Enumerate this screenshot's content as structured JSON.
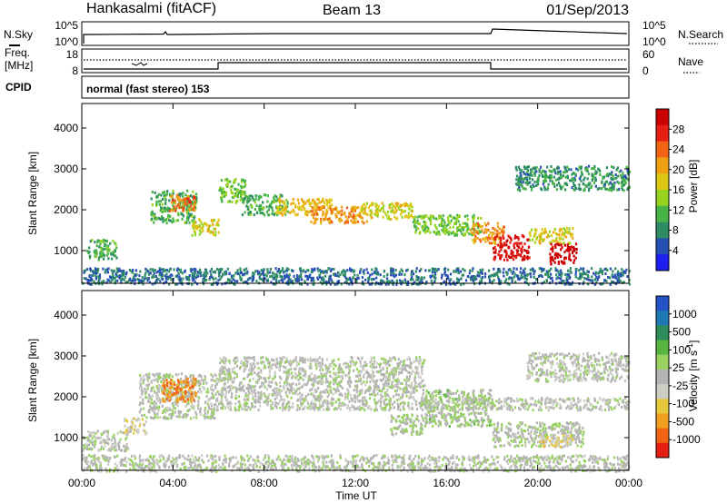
{
  "header": {
    "station": "Hankasalmi (fitACF)",
    "beam": "Beam 13",
    "date": "01/Sep/2013"
  },
  "summary": {
    "nsky_label": "N.Sky",
    "nsearch_label": "N.Search",
    "noise_ticks": [
      "10^5",
      "10^0"
    ],
    "freq_label_line1": "Freq.",
    "freq_label_line2": "[MHz]",
    "freq_ticks": [
      "18",
      "8"
    ],
    "nave_label": "Nave",
    "nave_ticks": [
      "60",
      "0"
    ],
    "cpid_label": "CPID",
    "cpid_text": "normal (fast stereo) 153"
  },
  "x_axis": {
    "label": "Time UT",
    "ticks": [
      "00:00",
      "04:00",
      "08:00",
      "12:00",
      "16:00",
      "20:00",
      "00:00"
    ]
  },
  "colors": {
    "power_scale": [
      "#1e1ef0",
      "#2850b4",
      "#2e8c64",
      "#46b446",
      "#96d21e",
      "#dcc814",
      "#f0a014",
      "#f06414",
      "#e61e14",
      "#cc0000"
    ],
    "velocity_scale": [
      "#2450c8",
      "#1e78b4",
      "#2e8c5a",
      "#58b440",
      "#9ad262",
      "#b4b4b4",
      "#cdcdc6",
      "#e6c83c",
      "#f0a01e",
      "#f06414",
      "#e61e14"
    ]
  },
  "chart_data": [
    {
      "type": "heatmap",
      "panel": "power",
      "ylabel": "Slant Range [km]",
      "xlim_hours": [
        0,
        24
      ],
      "ylim": [
        200,
        4600
      ],
      "y_ticks": [
        1000,
        2000,
        3000,
        4000
      ],
      "colorbar": {
        "label": "Power [dB]",
        "ticks": [
          "28",
          "24",
          "20",
          "16",
          "12",
          "8",
          "4"
        ],
        "range": [
          0,
          30
        ]
      },
      "regions": [
        {
          "t": [
            3.0,
            5.0
          ],
          "range": [
            1700,
            2500
          ],
          "value": 10
        },
        {
          "t": [
            3.8,
            5.0
          ],
          "range": [
            2000,
            2400
          ],
          "value": 22
        },
        {
          "t": [
            4.8,
            6.0
          ],
          "range": [
            1400,
            1800
          ],
          "value": 16
        },
        {
          "t": [
            6.0,
            7.2
          ],
          "range": [
            2200,
            2800
          ],
          "value": 12
        },
        {
          "t": [
            7.0,
            9.0
          ],
          "range": [
            1900,
            2400
          ],
          "value": 10
        },
        {
          "t": [
            8.5,
            11.0
          ],
          "range": [
            1900,
            2300
          ],
          "value": 18
        },
        {
          "t": [
            10.0,
            12.5
          ],
          "range": [
            1700,
            2100
          ],
          "value": 20
        },
        {
          "t": [
            12.0,
            14.5
          ],
          "range": [
            1800,
            2200
          ],
          "value": 16
        },
        {
          "t": [
            14.5,
            17.5
          ],
          "range": [
            1400,
            1900
          ],
          "value": 12
        },
        {
          "t": [
            17.0,
            18.5
          ],
          "range": [
            1200,
            1700
          ],
          "value": 20
        },
        {
          "t": [
            18.0,
            19.6
          ],
          "range": [
            800,
            1400
          ],
          "value": 27
        },
        {
          "t": [
            19.6,
            21.5
          ],
          "range": [
            1200,
            1600
          ],
          "value": 16
        },
        {
          "t": [
            20.5,
            21.7
          ],
          "range": [
            700,
            1200
          ],
          "value": 30
        },
        {
          "t": [
            19.0,
            24.0
          ],
          "range": [
            2500,
            3100
          ],
          "value": 8
        },
        {
          "t": [
            0.2,
            1.5
          ],
          "range": [
            800,
            1300
          ],
          "value": 10
        },
        {
          "t": [
            0.0,
            24.0
          ],
          "range": [
            200,
            600
          ],
          "value": 6
        }
      ]
    },
    {
      "type": "heatmap",
      "panel": "velocity",
      "ylabel": "Slant Range [km]",
      "xlim_hours": [
        0,
        24
      ],
      "ylim": [
        200,
        4600
      ],
      "y_ticks": [
        1000,
        2000,
        3000,
        4000
      ],
      "colorbar": {
        "label": "Velocity [m s^-1]",
        "ticks": [
          "1000",
          "500",
          "100",
          "25",
          "-25",
          "-100",
          "-500",
          "-1000"
        ],
        "range": [
          -1000,
          1000
        ]
      },
      "regions": [
        {
          "t": [
            2.5,
            6.0
          ],
          "range": [
            1500,
            2600
          ],
          "value": 0
        },
        {
          "t": [
            3.5,
            5.0
          ],
          "range": [
            1900,
            2500
          ],
          "value": -600
        },
        {
          "t": [
            6.0,
            15.0
          ],
          "range": [
            1700,
            3000
          ],
          "value": 0
        },
        {
          "t": [
            1.8,
            2.8
          ],
          "range": [
            1100,
            1500
          ],
          "value": -200
        },
        {
          "t": [
            0.0,
            2.0
          ],
          "range": [
            700,
            1200
          ],
          "value": 0
        },
        {
          "t": [
            13.5,
            15.0
          ],
          "range": [
            1100,
            1600
          ],
          "value": 80
        },
        {
          "t": [
            15.0,
            18.0
          ],
          "range": [
            1300,
            2200
          ],
          "value": 120
        },
        {
          "t": [
            18.0,
            22.0
          ],
          "range": [
            800,
            1400
          ],
          "value": 60
        },
        {
          "t": [
            20.0,
            21.5
          ],
          "range": [
            800,
            1100
          ],
          "value": -300
        },
        {
          "t": [
            15.0,
            24.0
          ],
          "range": [
            1700,
            2000
          ],
          "value": 0
        },
        {
          "t": [
            19.5,
            24.0
          ],
          "range": [
            2400,
            3100
          ],
          "value": 0
        },
        {
          "t": [
            0.0,
            24.0
          ],
          "range": [
            200,
            600
          ],
          "value": 10
        }
      ]
    }
  ]
}
